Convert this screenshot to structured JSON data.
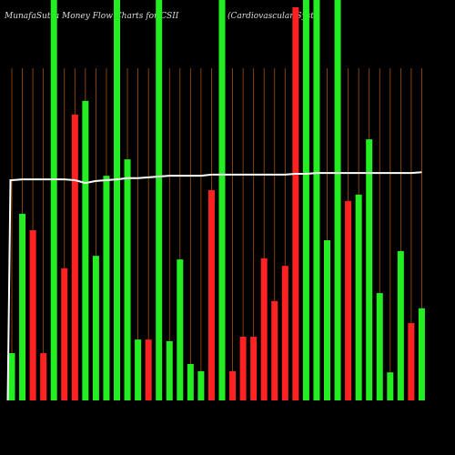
{
  "chart_data": {
    "type": "bar",
    "title": "MunafaSutra  Money Flow  Charts for CSII",
    "subtitle": "(Cardiovascular Syst",
    "ylim": [
      0,
      100
    ],
    "series": [
      {
        "name": "money-flow",
        "colors": [
          "#22ee22",
          "#22ee22",
          "#ff2222",
          "#ff2222",
          "#22ee22",
          "#ff2222",
          "#ff2222",
          "#22ee22",
          "#22ee22",
          "#22ee22",
          "#22ee22",
          "#22ee22",
          "#22ee22",
          "#ff2222",
          "#22ee22",
          "#22ee22",
          "#22ee22",
          "#22ee22",
          "#22ee22",
          "#ff2222",
          "#22ee22",
          "#ff2222",
          "#ff2222",
          "#ff2222",
          "#ff2222",
          "#ff2222",
          "#ff2222",
          "#ff2222",
          "#22ee22",
          "#22ee22",
          "#22ee22",
          "#22ee22",
          "#ff2222",
          "#22ee22",
          "#22ee22",
          "#22ee22",
          "#22ee22",
          "#22ee22",
          "#ff2222",
          "#22ee22"
        ],
        "values": [
          11.8,
          46.6,
          42.5,
          11.8,
          100,
          33,
          71.4,
          74.8,
          36.1,
          56.1,
          100,
          60.2,
          15.2,
          15.2,
          100,
          14.8,
          35.2,
          9.1,
          7.3,
          52.5,
          100,
          7.3,
          15.9,
          15.9,
          35.5,
          24.8,
          33.6,
          98.2,
          100,
          100,
          40,
          100,
          49.8,
          51.4,
          65.2,
          26.8,
          7,
          37.3,
          19.3,
          23
        ]
      },
      {
        "name": "price-line",
        "color": "#ffffff",
        "values": [
          55.0,
          55.2,
          55.2,
          55.2,
          55.2,
          55.2,
          55.0,
          54.3,
          54.8,
          55.0,
          55.2,
          55.5,
          55.5,
          55.7,
          55.9,
          56.1,
          56.1,
          56.1,
          56.1,
          56.4,
          56.4,
          56.4,
          56.4,
          56.4,
          56.4,
          56.4,
          56.4,
          56.6,
          56.6,
          56.8,
          56.8,
          56.8,
          56.8,
          56.8,
          56.8,
          56.8,
          56.8,
          56.8,
          56.8,
          57.0
        ]
      }
    ]
  }
}
